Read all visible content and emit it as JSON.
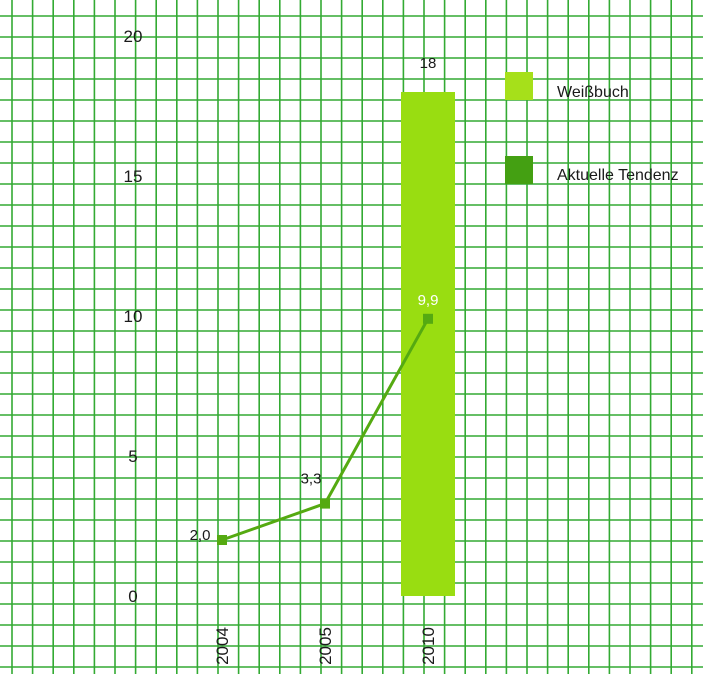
{
  "chart_data": {
    "type": "bar",
    "categories": [
      "2004",
      "2005",
      "2010"
    ],
    "ylim": [
      0,
      20
    ],
    "yticks": [
      0,
      5,
      10,
      15,
      20
    ],
    "grid": true,
    "legend_placement": "top-right",
    "series": [
      {
        "name": "Weißbuch",
        "kind": "bar",
        "color": "#99dd11",
        "values": [
          null,
          null,
          18
        ],
        "labels": [
          "",
          "",
          "18"
        ]
      },
      {
        "name": "Aktuelle Tendenz",
        "kind": "line",
        "color": "#55aa11",
        "values": [
          2.0,
          3.3,
          9.9
        ],
        "labels": [
          "2,0",
          "3,3",
          "9,9"
        ]
      }
    ]
  },
  "colors": {
    "grid": "#33aa33",
    "bar": "#99dd11",
    "line": "#55aa11",
    "legend_bar": "#a6e01a",
    "legend_line": "#44a012"
  }
}
